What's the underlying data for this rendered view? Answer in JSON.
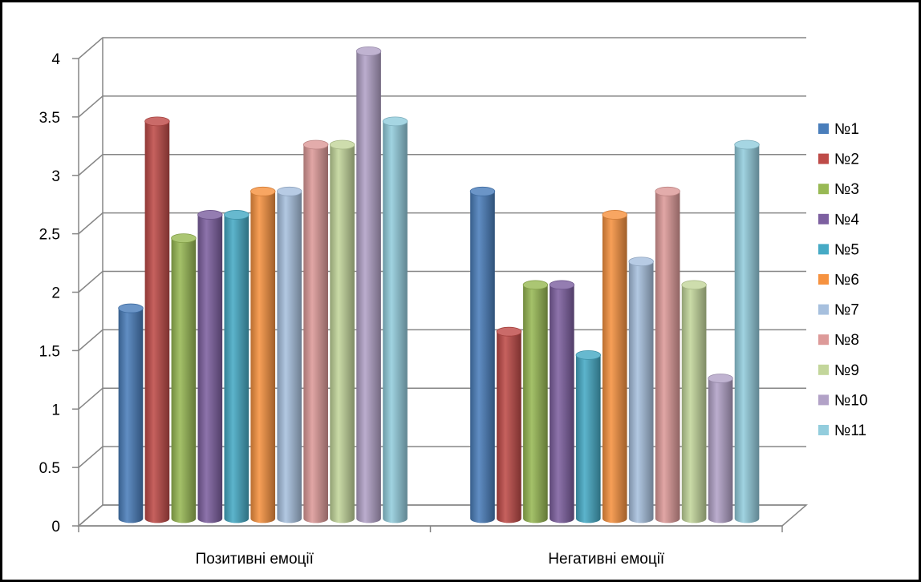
{
  "chart_data": {
    "type": "bar",
    "style": "3d-cylinder",
    "categories": [
      "Позитивні емоції",
      "Негативні емоції"
    ],
    "series": [
      {
        "name": "№1",
        "values": [
          1.8,
          2.8
        ],
        "color": "#4a7ebb"
      },
      {
        "name": "№2",
        "values": [
          3.4,
          1.6
        ],
        "color": "#be4b48"
      },
      {
        "name": "№3",
        "values": [
          2.4,
          2.0
        ],
        "color": "#98b954"
      },
      {
        "name": "№4",
        "values": [
          2.6,
          2.0
        ],
        "color": "#7d60a0"
      },
      {
        "name": "№5",
        "values": [
          2.6,
          1.4
        ],
        "color": "#46aac5"
      },
      {
        "name": "№6",
        "values": [
          2.8,
          2.6
        ],
        "color": "#f69240"
      },
      {
        "name": "№7",
        "values": [
          2.8,
          2.2
        ],
        "color": "#a7c0de"
      },
      {
        "name": "№8",
        "values": [
          3.2,
          2.8
        ],
        "color": "#dd9a99"
      },
      {
        "name": "№9",
        "values": [
          3.2,
          2.0
        ],
        "color": "#c3d69b"
      },
      {
        "name": "№10",
        "values": [
          4.0,
          1.2
        ],
        "color": "#b2a2c7"
      },
      {
        "name": "№11",
        "values": [
          3.4,
          3.2
        ],
        "color": "#93cddd"
      }
    ],
    "ylim": [
      0,
      4
    ],
    "yticks": [
      "0",
      "0.5",
      "1",
      "1.5",
      "2",
      "2.5",
      "3",
      "3.5",
      "4"
    ],
    "grid": true,
    "legend": "right"
  }
}
